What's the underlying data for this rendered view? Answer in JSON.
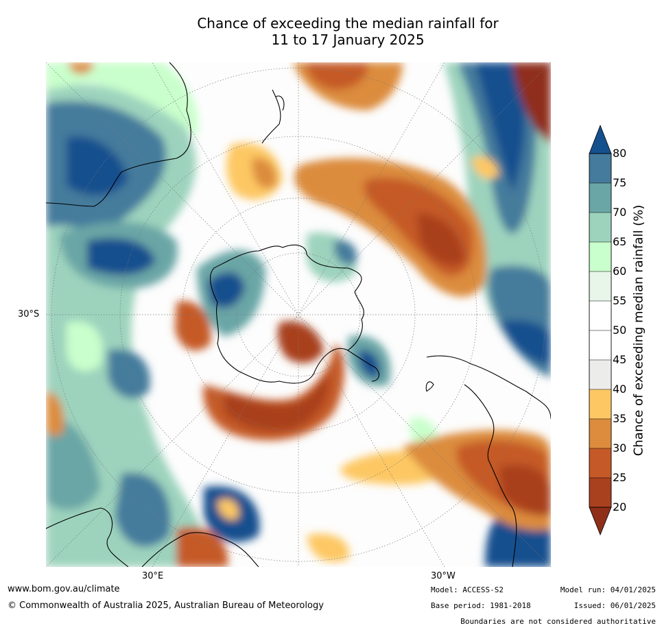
{
  "title_line1": "Chance of exceeding the median rainfall for",
  "title_line2": "11 to 17 January 2025",
  "grid_labels": {
    "lat": "30°S",
    "lon_east": "30°E",
    "lon_west": "30°W"
  },
  "colorbar": {
    "label": "Chance of exceeding median rainfall (%)",
    "ticks": [
      "20",
      "25",
      "30",
      "35",
      "40",
      "45",
      "50",
      "55",
      "60",
      "65",
      "70",
      "75",
      "80"
    ],
    "colors": {
      "below20": "#8f2f1a",
      "20-25": "#a9411f",
      "25-30": "#c55a28",
      "30-35": "#dc8c3c",
      "35-40": "#fdc864",
      "40-45": "#ececea",
      "45-50": "#ffffff",
      "50-55": "#ffffff",
      "55-60": "#e8f5e9",
      "60-65": "#c9ffcc",
      "65-70": "#9dd3bd",
      "70-75": "#6aa6a6",
      "75-80": "#457b9c",
      "above80": "#15508e"
    }
  },
  "footer": {
    "website": "www.bom.gov.au/climate",
    "copyright": "© Commonwealth of Australia 2025, Australian Bureau of Meteorology",
    "model": "Model: ACCESS-S2",
    "base_period": "Base period: 1981-2018",
    "model_run": "Model run: 04/01/2025",
    "issued": "Issued: 06/01/2025",
    "disclaimer": "Boundaries are not considered authoritative"
  }
}
